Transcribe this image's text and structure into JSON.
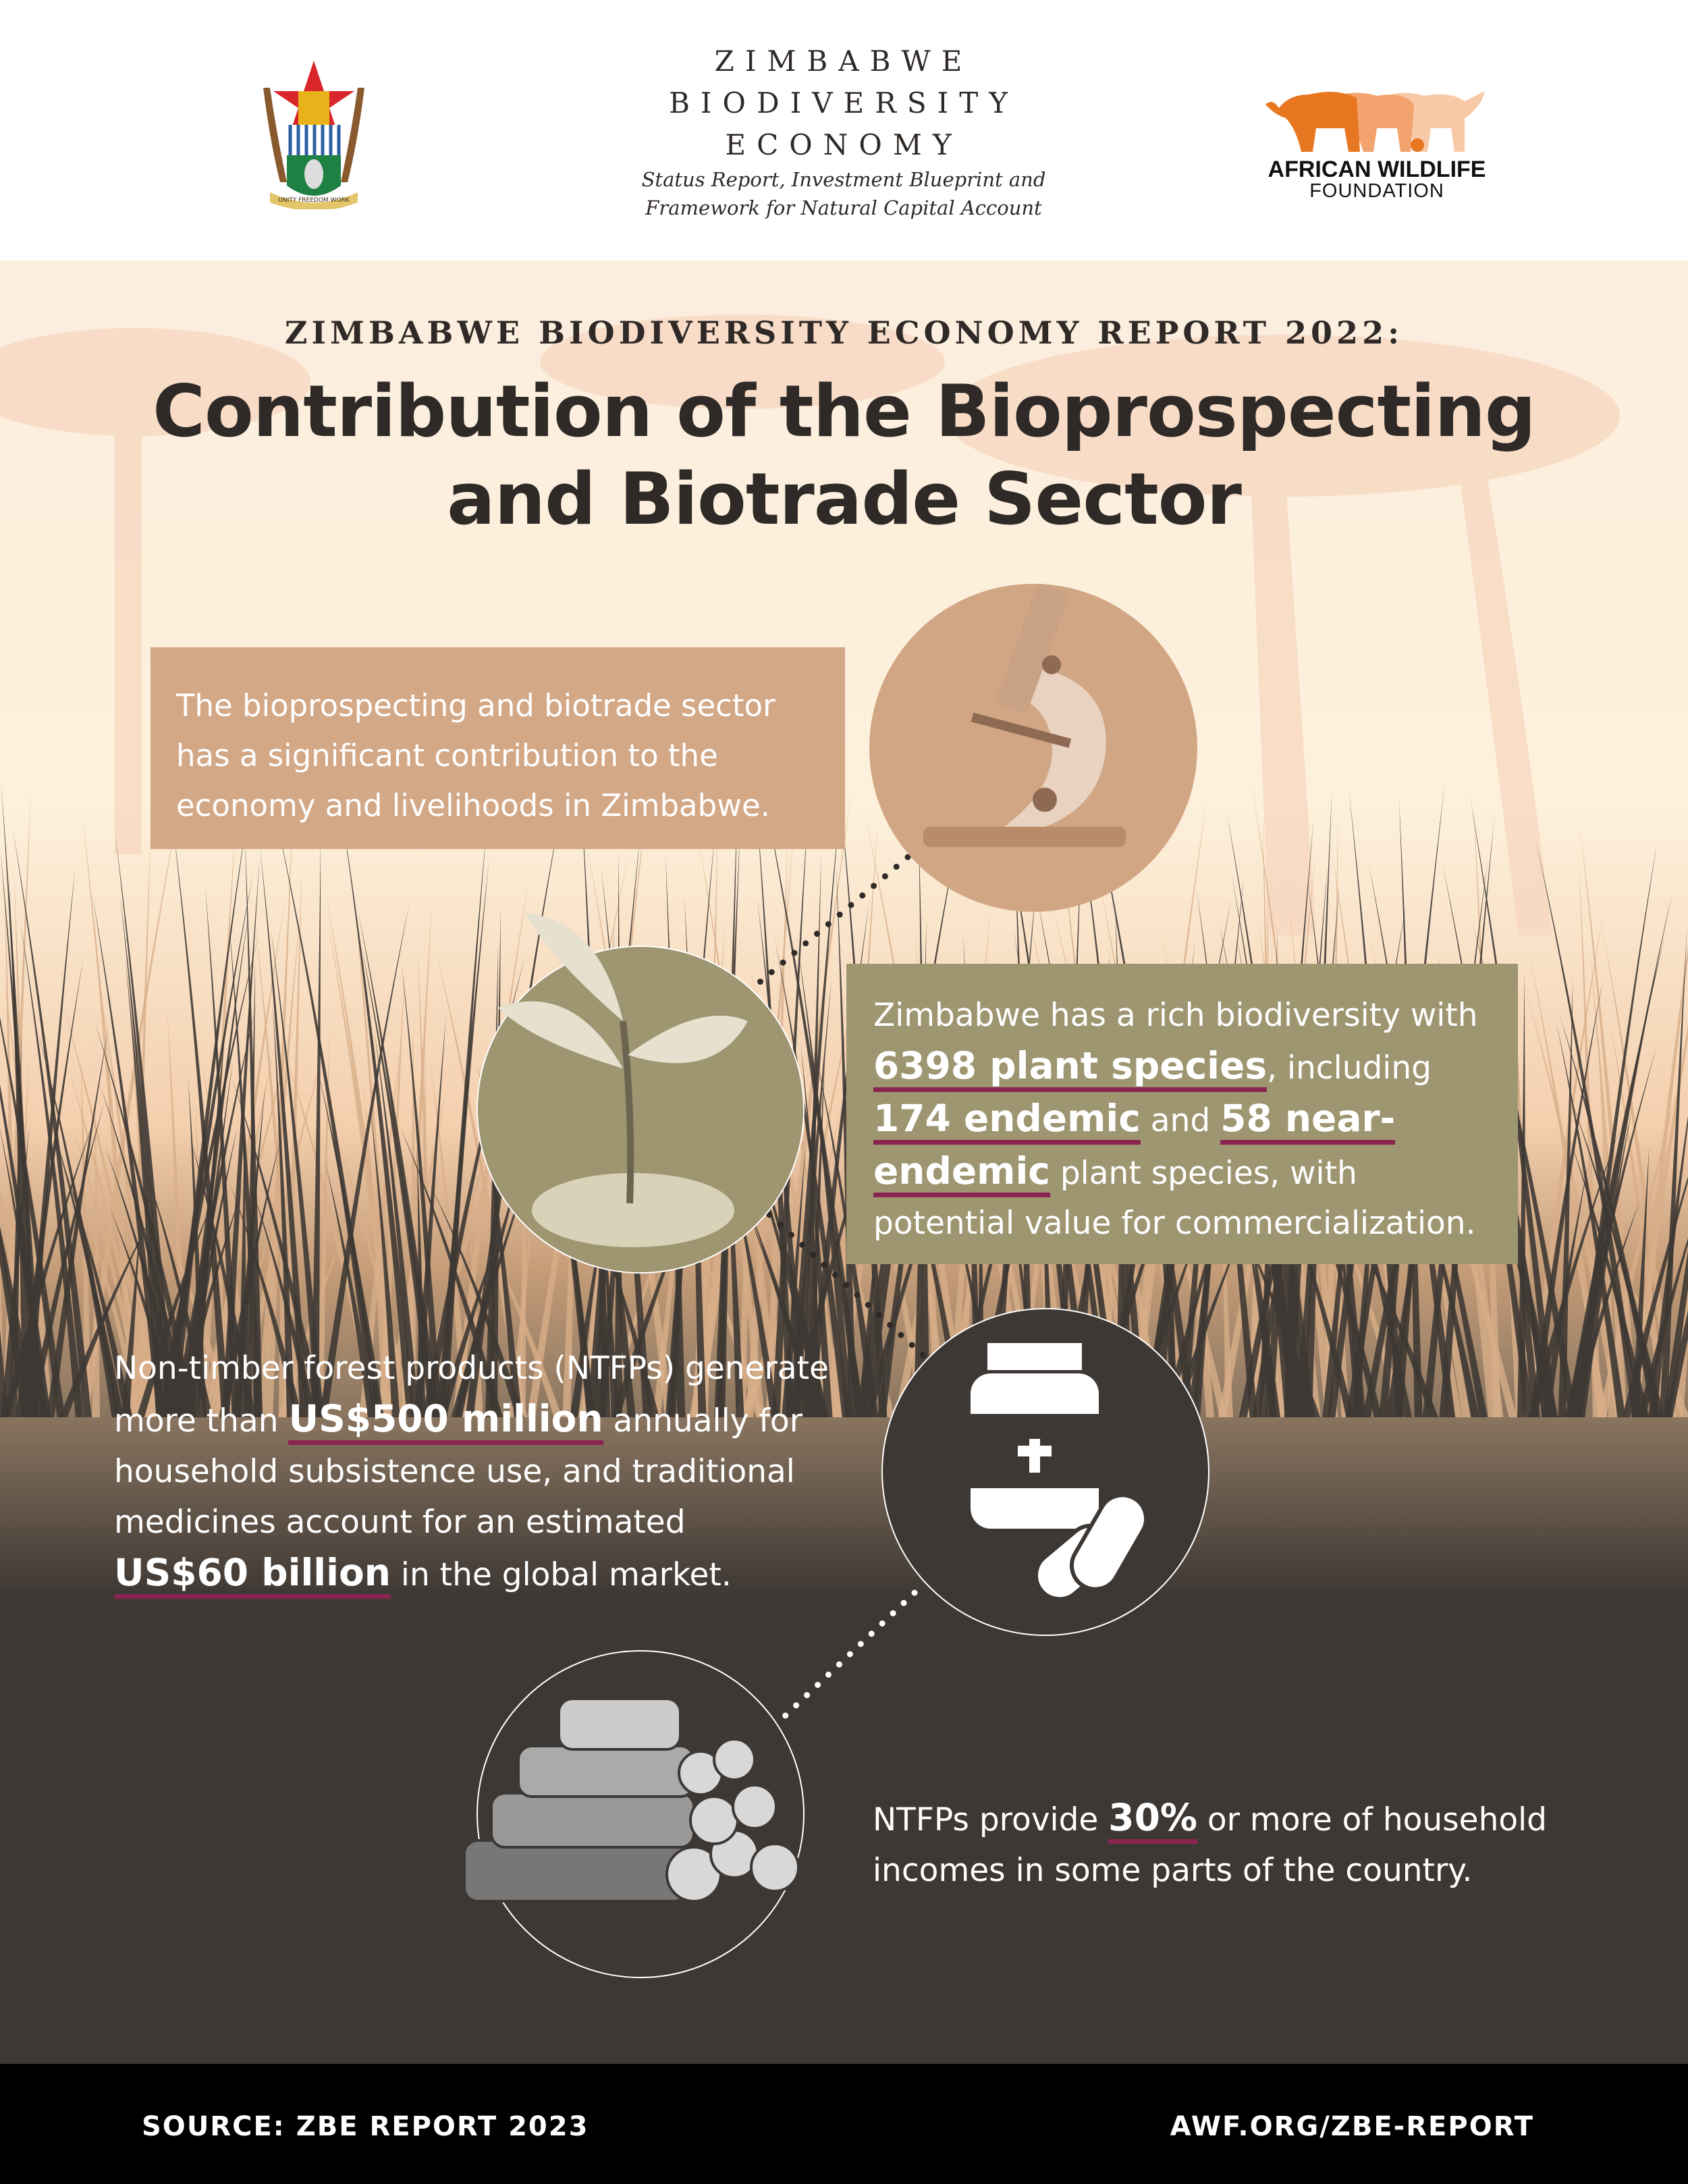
{
  "header": {
    "report_title_lines": [
      "ZIMBABWE",
      "BIODIVERSITY",
      "ECONOMY"
    ],
    "report_subtitle_lines": [
      "Status Report, Investment Blueprint and",
      "Framework for Natural Capital Account"
    ],
    "coat_of_arms_motto": "UNITY FREEDOM WORK",
    "awf_logo": {
      "line1": "AFRICAN WILDLIFE",
      "line2": "FOUNDATION"
    }
  },
  "kicker": "ZIMBABWE BIODIVERSITY ECONOMY REPORT 2022:",
  "title_lines": [
    "Contribution of the Bioprospecting",
    "and Biotrade Sector"
  ],
  "intro": "The bioprospecting and biotrade sector has a significant contribution to the economy and livelihoods in Zimbabwe.",
  "biodiversity": {
    "p1": "Zimbabwe has a rich biodiversity with ",
    "h1": "6398 plant species",
    "p2": ", including ",
    "h2": "174 endemic",
    "p3": " and ",
    "h3": "58 near-endemic",
    "p4": " plant species, with potential value for commercialization."
  },
  "ntfp": {
    "p1": "Non-timber forest products (NTFPs) generate more than ",
    "h1": "US$500 million",
    "p2": " annually for household subsistence use, and traditional medicines account for an estimated ",
    "h2": "US$60 billion",
    "p3": " in the global market."
  },
  "income": {
    "p1": "NTFPs provide ",
    "h1": "30%",
    "p2": " or more of household incomes in some parts of the country."
  },
  "footer": {
    "source": "SOURCE: ZBE REPORT 2023",
    "url": "AWF.ORG/ZBE-REPORT"
  },
  "colors": {
    "accent_underline": "#8a2450",
    "intro_box": "#d3a887",
    "bio_box": "#9e9571",
    "dark": "#3e3834",
    "awf_orange": "#e87722"
  },
  "icons": [
    "coat-of-arms",
    "elephant-logo",
    "microscope-icon",
    "seedling-icon",
    "medicine-bottle-icon",
    "firewood-logs-icon"
  ]
}
